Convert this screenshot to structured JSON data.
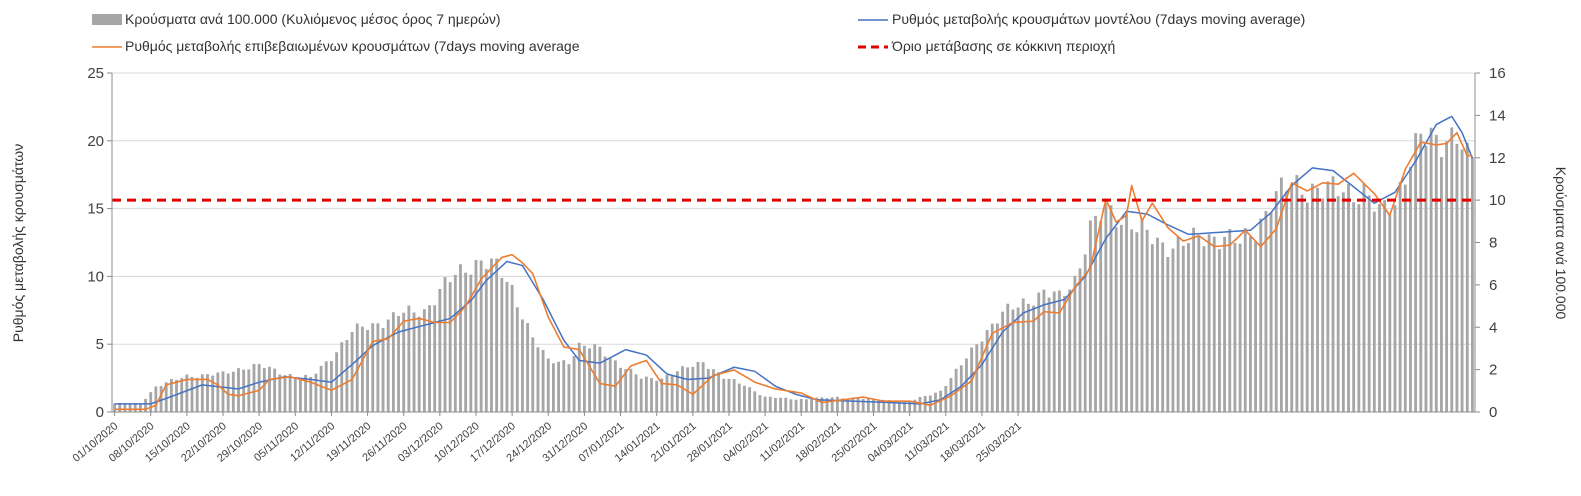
{
  "chart_data": {
    "type": "bar+line",
    "title": "",
    "left_axis": {
      "label": "Ρυθμός μεταβολής κρουσμάτων",
      "range": [
        0,
        25
      ],
      "ticks": [
        "0",
        "5",
        "10",
        "15",
        "20",
        "25"
      ]
    },
    "right_axis": {
      "label": "Κρούσματα ανά 100.000",
      "range": [
        0,
        16
      ],
      "ticks": [
        "0",
        "2",
        "4",
        "6",
        "8",
        "10",
        "12",
        "14",
        "16"
      ]
    },
    "x_dates": [
      "01/10/2020",
      "08/10/2020",
      "15/10/2020",
      "22/10/2020",
      "29/10/2020",
      "05/11/2020",
      "12/11/2020",
      "19/11/2020",
      "26/11/2020",
      "03/12/2020",
      "10/12/2020",
      "17/12/2020",
      "24/12/2020",
      "31/12/2020",
      "07/01/2021",
      "14/01/2021",
      "21/01/2021",
      "28/01/2021",
      "04/02/2021",
      "11/02/2021",
      "18/02/2021",
      "25/02/2021",
      "04/03/2021",
      "11/03/2021",
      "18/03/2021",
      "25/03/2021"
    ],
    "legend": [
      {
        "key": "bars",
        "label": "Κρούσματα ανά 100.000  (Κυλιόμενος μέσος όρος 7 ημερών)"
      },
      {
        "key": "model",
        "label": "Ρυθμός μεταβολής κρουσμάτων μοντέλου (7days moving average)"
      },
      {
        "key": "confirmed",
        "label": "Ρυθμός μεταβολής επιβεβαιωμένων κρουσμάτων (7days moving average"
      },
      {
        "key": "threshold",
        "label": "Όριο μετάβασης σε κόκκινη περιοχή"
      }
    ],
    "threshold": {
      "axis": "right",
      "value": 10
    },
    "series": [
      {
        "name": "Κρούσματα ανά 100.000 (Κυλιόμενος μέσος όρος 7 ημερών)",
        "type": "bar",
        "axis": "right",
        "color": "#a6a6a6",
        "knots": [
          [
            0,
            0.4
          ],
          [
            5,
            0.4
          ],
          [
            8,
            1.2
          ],
          [
            14,
            1.7
          ],
          [
            21,
            1.8
          ],
          [
            25,
            2.1
          ],
          [
            28,
            2.2
          ],
          [
            33,
            1.8
          ],
          [
            38,
            1.6
          ],
          [
            42,
            2.6
          ],
          [
            46,
            3.8
          ],
          [
            50,
            4.1
          ],
          [
            55,
            4.6
          ],
          [
            60,
            4.8
          ],
          [
            64,
            6.0
          ],
          [
            68,
            6.8
          ],
          [
            71,
            7.2
          ],
          [
            74,
            6.8
          ],
          [
            77,
            5.8
          ],
          [
            81,
            3.5
          ],
          [
            84,
            2.4
          ],
          [
            88,
            2.4
          ],
          [
            90,
            3.1
          ],
          [
            94,
            3.0
          ],
          [
            98,
            2.2
          ],
          [
            102,
            1.6
          ],
          [
            106,
            1.6
          ],
          [
            110,
            2.0
          ],
          [
            114,
            2.4
          ],
          [
            118,
            1.6
          ],
          [
            122,
            1.3
          ],
          [
            126,
            0.7
          ],
          [
            133,
            0.6
          ],
          [
            140,
            0.7
          ],
          [
            147,
            0.6
          ],
          [
            154,
            0.5
          ],
          [
            160,
            1.0
          ],
          [
            164,
            2.2
          ],
          [
            168,
            3.6
          ],
          [
            172,
            4.6
          ],
          [
            176,
            5.2
          ],
          [
            180,
            5.6
          ],
          [
            183,
            5.4
          ],
          [
            186,
            6.3
          ],
          [
            189,
            8.6
          ],
          [
            192,
            9.5
          ],
          [
            196,
            9.1
          ],
          [
            200,
            8.3
          ],
          [
            203,
            7.9
          ],
          [
            208,
            8.0
          ],
          [
            212,
            8.3
          ],
          [
            215,
            8.3
          ],
          [
            218,
            7.9
          ],
          [
            221,
            8.6
          ],
          [
            224,
            10.0
          ],
          [
            228,
            10.7
          ],
          [
            232,
            10.6
          ],
          [
            235,
            10.4
          ],
          [
            238,
            10.5
          ],
          [
            242,
            10.4
          ],
          [
            245,
            9.3
          ],
          [
            248,
            10.0
          ],
          [
            251,
            12.0
          ],
          [
            253,
            12.8
          ],
          [
            256,
            12.8
          ],
          [
            258,
            13.1
          ],
          [
            260,
            13.2
          ],
          [
            262,
            11.8
          ]
        ]
      },
      {
        "name": "Ρυθμός μεταβολής κρουσμάτων μοντέλου (7days moving average)",
        "type": "line",
        "axis": "left",
        "color": "#4472c4",
        "knots": [
          [
            0,
            0.6
          ],
          [
            7,
            0.6
          ],
          [
            10,
            1.0
          ],
          [
            17,
            2.0
          ],
          [
            24,
            1.7
          ],
          [
            28,
            2.2
          ],
          [
            33,
            2.6
          ],
          [
            38,
            2.4
          ],
          [
            42,
            2.2
          ],
          [
            46,
            3.5
          ],
          [
            50,
            4.9
          ],
          [
            55,
            5.9
          ],
          [
            60,
            6.4
          ],
          [
            65,
            6.9
          ],
          [
            69,
            8.2
          ],
          [
            72,
            9.7
          ],
          [
            76,
            11.1
          ],
          [
            79,
            10.8
          ],
          [
            83,
            8.3
          ],
          [
            87,
            5.3
          ],
          [
            90,
            3.8
          ],
          [
            94,
            3.6
          ],
          [
            99,
            4.6
          ],
          [
            103,
            4.2
          ],
          [
            107,
            2.8
          ],
          [
            111,
            2.4
          ],
          [
            115,
            2.5
          ],
          [
            120,
            3.3
          ],
          [
            124,
            3.0
          ],
          [
            128,
            1.9
          ],
          [
            132,
            1.3
          ],
          [
            136,
            0.9
          ],
          [
            143,
            0.8
          ],
          [
            150,
            0.7
          ],
          [
            156,
            0.6
          ],
          [
            160,
            0.9
          ],
          [
            164,
            1.9
          ],
          [
            168,
            3.5
          ],
          [
            172,
            5.9
          ],
          [
            176,
            7.3
          ],
          [
            180,
            7.9
          ],
          [
            184,
            8.3
          ],
          [
            188,
            10.0
          ],
          [
            192,
            12.8
          ],
          [
            196,
            14.8
          ],
          [
            200,
            14.6
          ],
          [
            204,
            13.8
          ],
          [
            208,
            13.1
          ],
          [
            212,
            13.2
          ],
          [
            216,
            13.3
          ],
          [
            220,
            13.4
          ],
          [
            224,
            14.7
          ],
          [
            228,
            16.7
          ],
          [
            232,
            18.0
          ],
          [
            236,
            17.8
          ],
          [
            240,
            16.6
          ],
          [
            244,
            15.4
          ],
          [
            248,
            16.2
          ],
          [
            252,
            18.5
          ],
          [
            256,
            21.2
          ],
          [
            259,
            21.8
          ],
          [
            261,
            20.6
          ],
          [
            263,
            18.7
          ]
        ]
      },
      {
        "name": "Ρυθμός μεταβολής επιβεβαιωμένων κρουσμάτων (7days moving average",
        "type": "line",
        "axis": "left",
        "color": "#ed7d31",
        "knots": [
          [
            0,
            0.2
          ],
          [
            6,
            0.2
          ],
          [
            8,
            0.5
          ],
          [
            10,
            2.0
          ],
          [
            14,
            2.4
          ],
          [
            18,
            2.4
          ],
          [
            20,
            2.0
          ],
          [
            22,
            1.3
          ],
          [
            24,
            1.2
          ],
          [
            28,
            1.6
          ],
          [
            30,
            2.4
          ],
          [
            34,
            2.6
          ],
          [
            38,
            2.2
          ],
          [
            42,
            1.6
          ],
          [
            46,
            2.4
          ],
          [
            50,
            5.2
          ],
          [
            53,
            5.4
          ],
          [
            56,
            6.7
          ],
          [
            59,
            6.9
          ],
          [
            62,
            6.6
          ],
          [
            65,
            6.6
          ],
          [
            68,
            7.8
          ],
          [
            71,
            9.8
          ],
          [
            75,
            11.4
          ],
          [
            77,
            11.6
          ],
          [
            79,
            11.0
          ],
          [
            81,
            10.2
          ],
          [
            84,
            7.0
          ],
          [
            87,
            4.8
          ],
          [
            90,
            4.6
          ],
          [
            94,
            2.1
          ],
          [
            97,
            1.9
          ],
          [
            100,
            3.4
          ],
          [
            103,
            3.8
          ],
          [
            106,
            2.1
          ],
          [
            109,
            2.0
          ],
          [
            112,
            1.3
          ],
          [
            116,
            2.7
          ],
          [
            120,
            3.1
          ],
          [
            124,
            2.2
          ],
          [
            128,
            1.7
          ],
          [
            133,
            1.4
          ],
          [
            137,
            0.7
          ],
          [
            141,
            0.9
          ],
          [
            145,
            1.1
          ],
          [
            149,
            0.8
          ],
          [
            154,
            0.8
          ],
          [
            158,
            0.5
          ],
          [
            162,
            1.2
          ],
          [
            166,
            2.3
          ],
          [
            170,
            5.8
          ],
          [
            174,
            6.6
          ],
          [
            178,
            6.7
          ],
          [
            180,
            7.4
          ],
          [
            183,
            7.3
          ],
          [
            186,
            9.2
          ],
          [
            189,
            10.6
          ],
          [
            192,
            15.7
          ],
          [
            194,
            14.0
          ],
          [
            196,
            14.5
          ],
          [
            197,
            16.7
          ],
          [
            199,
            14.1
          ],
          [
            201,
            15.4
          ],
          [
            204,
            13.6
          ],
          [
            207,
            12.6
          ],
          [
            210,
            13.0
          ],
          [
            213,
            12.2
          ],
          [
            216,
            12.3
          ],
          [
            219,
            13.4
          ],
          [
            222,
            12.2
          ],
          [
            225,
            13.5
          ],
          [
            228,
            16.9
          ],
          [
            231,
            16.3
          ],
          [
            234,
            16.9
          ],
          [
            237,
            16.8
          ],
          [
            240,
            17.6
          ],
          [
            244,
            16.1
          ],
          [
            247,
            14.5
          ],
          [
            250,
            17.9
          ],
          [
            253,
            19.9
          ],
          [
            256,
            19.7
          ],
          [
            258,
            19.8
          ],
          [
            260,
            20.6
          ],
          [
            262,
            18.9
          ]
        ]
      }
    ]
  }
}
